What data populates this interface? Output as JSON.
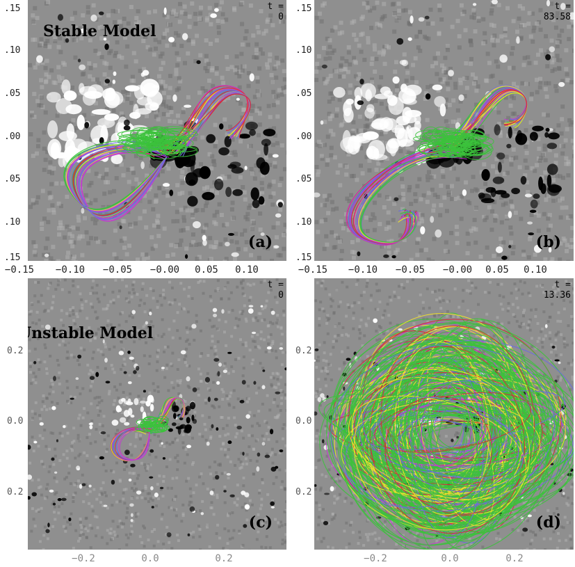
{
  "panels": {
    "a": {
      "label": "(a)",
      "title": "Stable Model",
      "t_label": "t =",
      "t_value": "0",
      "yticks": [
        ".15",
        ".10",
        ".05",
        ".00",
        ".05",
        ".10",
        ".15"
      ]
    },
    "b": {
      "label": "(b)",
      "t_label": "t =",
      "t_value": "83.58",
      "yticks": [
        ".15",
        ".10",
        ".05",
        ".00",
        ".05",
        ".10",
        ".15"
      ]
    },
    "c": {
      "label": "(c)",
      "title": "Unstable Model",
      "t_label": "t =",
      "t_value": "0",
      "yticks": [
        "0.2",
        "0.0",
        "0.2"
      ]
    },
    "d": {
      "label": "(d)",
      "t_label": "t =",
      "t_value": "13.36",
      "yticks": [
        "0.2",
        "0.0",
        "0.2"
      ]
    }
  },
  "xaxis_top": [
    "−0.15",
    "−0.10",
    "−0.05",
    "−0.00",
    "0.05",
    "0.10"
  ],
  "xaxis_bottom": [
    "−0.2",
    "0.0",
    "0.2"
  ],
  "colors": {
    "background_gray": "#8f8f8f",
    "field_green": "#3cc23c",
    "field_yellow": "#f2e22a",
    "field_magenta": "#c43ad0",
    "field_red": "#d8283c",
    "field_blue": "#6a6ae0",
    "positive_polarity": "#ffffff",
    "negative_polarity": "#000000"
  }
}
